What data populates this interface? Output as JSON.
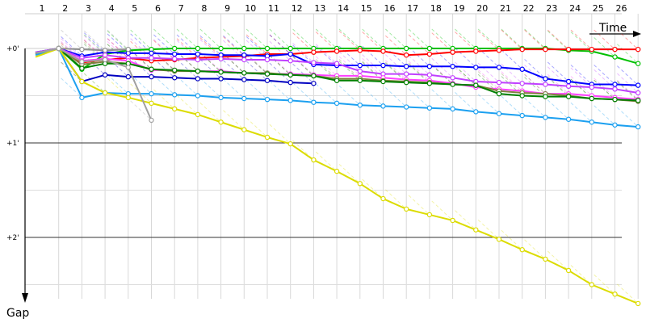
{
  "chart_data": {
    "type": "line",
    "title": "",
    "xlabel": "Time",
    "ylabel": "Gap",
    "x_tick_labels": [
      "1",
      "2",
      "3",
      "4",
      "5",
      "6",
      "7",
      "8",
      "9",
      "10",
      "11",
      "12",
      "13",
      "14",
      "15",
      "16",
      "17",
      "18",
      "19",
      "20",
      "21",
      "22",
      "23",
      "24",
      "25",
      "26"
    ],
    "y_tick_labels": [
      "+0'",
      "+1'",
      "+2'"
    ],
    "y_tick_values": [
      0,
      1,
      2
    ],
    "xlim": [
      1,
      26.9
    ],
    "ylim": [
      0,
      2.6
    ],
    "y_inverted": true,
    "grid": true,
    "series": [
      {
        "color": "#00c000",
        "values": [
          0.06,
          0,
          0.22,
          0.06,
          0.02,
          0.01,
          0,
          0,
          0,
          0,
          0,
          0,
          0,
          0,
          0,
          0,
          0,
          0,
          0,
          0,
          0,
          0,
          0,
          0.02,
          0.03,
          0.09,
          0.16
        ]
      },
      {
        "color": "#ff0000",
        "values": [
          0.05,
          0,
          0.15,
          0.12,
          0.1,
          0.13,
          0.12,
          0.1,
          0.09,
          0.08,
          0.06,
          0.06,
          0.04,
          0.03,
          0.02,
          0.03,
          0.07,
          0.06,
          0.04,
          0.03,
          0.02,
          0.01,
          0.01,
          0.01,
          0.01,
          0.01,
          0.01
        ]
      },
      {
        "color": "#0000c0",
        "values": [
          0.04,
          0,
          0.35,
          0.28,
          0.3,
          0.3,
          0.31,
          0.32,
          0.32,
          0.33,
          0.34,
          0.36,
          0.37
        ]
      },
      {
        "color": "#0000ff",
        "values": [
          0.05,
          0,
          0.08,
          0.04,
          0.05,
          0.05,
          0.06,
          0.06,
          0.07,
          0.07,
          0.08,
          0.06,
          0.17,
          0.18,
          0.18,
          0.18,
          0.19,
          0.19,
          0.19,
          0.2,
          0.2,
          0.22,
          0.32,
          0.35,
          0.38,
          0.38,
          0.39
        ]
      },
      {
        "color": "#c040ff",
        "values": [
          0.04,
          0,
          0.1,
          0.07,
          0.1,
          0.1,
          0.11,
          0.12,
          0.11,
          0.12,
          0.12,
          0.13,
          0.15,
          0.16,
          0.24,
          0.27,
          0.27,
          0.28,
          0.31,
          0.35,
          0.36,
          0.37,
          0.38,
          0.4,
          0.41,
          0.43,
          0.47
        ]
      },
      {
        "color": "#ff40ff",
        "values": [
          0.05,
          0,
          0.13,
          0.11,
          0.13,
          0.23,
          0.23,
          0.24,
          0.24,
          0.26,
          0.27,
          0.27,
          0.28,
          0.29,
          0.29,
          0.31,
          0.33,
          0.34,
          0.37,
          0.41,
          0.43,
          0.45,
          0.48,
          0.48,
          0.5,
          0.52,
          0.54
        ]
      },
      {
        "color": "#808040",
        "values": [
          0.05,
          0,
          0.17,
          0.14,
          0.16,
          0.22,
          0.24,
          0.24,
          0.25,
          0.26,
          0.26,
          0.28,
          0.29,
          0.32,
          0.32,
          0.34,
          0.35,
          0.36,
          0.38,
          0.39,
          0.45,
          0.47,
          0.48,
          0.5,
          0.53,
          0.54,
          0.56
        ]
      },
      {
        "color": "#008000",
        "values": [
          0.06,
          0,
          0.21,
          0.16,
          0.16,
          0.22,
          0.23,
          0.24,
          0.25,
          0.26,
          0.27,
          0.28,
          0.29,
          0.34,
          0.34,
          0.35,
          0.36,
          0.37,
          0.38,
          0.39,
          0.48,
          0.5,
          0.51,
          0.51,
          0.53,
          0.54,
          0.55
        ]
      },
      {
        "color": "#1ca0f0",
        "values": [
          0.07,
          0,
          0.52,
          0.47,
          0.48,
          0.48,
          0.49,
          0.5,
          0.52,
          0.53,
          0.54,
          0.55,
          0.57,
          0.58,
          0.6,
          0.61,
          0.62,
          0.63,
          0.64,
          0.67,
          0.69,
          0.71,
          0.73,
          0.75,
          0.78,
          0.81,
          0.83
        ]
      },
      {
        "color": "#dcdc00",
        "values": [
          0.09,
          0,
          0.35,
          0.47,
          0.52,
          0.58,
          0.64,
          0.7,
          0.78,
          0.86,
          0.94,
          1.01,
          1.18,
          1.3,
          1.43,
          1.59,
          1.7,
          1.76,
          1.82,
          1.92,
          2.02,
          2.13,
          2.23,
          2.35,
          2.5,
          2.6,
          2.7
        ]
      },
      {
        "color": "#909090",
        "values": [
          0.05,
          0,
          0.01,
          0.02,
          0.01
        ]
      },
      {
        "color": "#a0a0a0",
        "values": [
          0.05,
          0,
          0.14,
          0.12,
          0.2,
          0.76
        ]
      }
    ]
  }
}
